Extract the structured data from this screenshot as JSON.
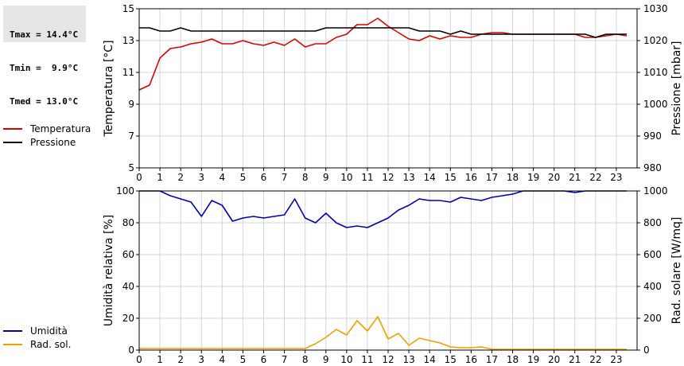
{
  "stats": {
    "lines": [
      "Tmax = 14.4°C",
      "Tmin =  9.9°C",
      "Tmed = 13.0°C"
    ]
  },
  "colors": {
    "temperature": "#dd0000",
    "pressure": "#000000",
    "humidity": "#0000b4",
    "radiation": "#f0a000",
    "grid": "#d4d4d4"
  },
  "chart_data": [
    {
      "type": "line",
      "xlabel": "",
      "ylabel": "Temperatura [°C]",
      "y2label": "Pressione [mbar]",
      "xlim": [
        0,
        24
      ],
      "xticks": [
        0,
        1,
        2,
        3,
        4,
        5,
        6,
        7,
        8,
        9,
        10,
        11,
        12,
        13,
        14,
        15,
        16,
        17,
        18,
        19,
        20,
        21,
        22,
        23
      ],
      "ylim": [
        5,
        15
      ],
      "yticks": [
        5,
        7,
        9,
        11,
        13,
        15
      ],
      "y2lim": [
        980,
        1030
      ],
      "y2ticks": [
        980,
        990,
        1000,
        1010,
        1020,
        1030
      ],
      "grid": true,
      "legend_position": "left",
      "series": [
        {
          "name": "Temperatura",
          "axis": "left",
          "color": "#dd0000",
          "x": [
            0,
            0.5,
            1,
            1.5,
            2,
            2.5,
            3,
            3.5,
            4,
            4.5,
            5,
            5.5,
            6,
            6.5,
            7,
            7.5,
            8,
            8.5,
            9,
            9.5,
            10,
            10.5,
            11,
            11.5,
            12,
            12.5,
            13,
            13.5,
            14,
            14.5,
            15,
            15.5,
            16,
            16.5,
            17,
            17.5,
            18,
            18.5,
            19,
            19.5,
            20,
            20.5,
            21,
            21.5,
            22,
            22.5,
            23,
            23.5
          ],
          "values": [
            9.9,
            10.2,
            11.9,
            12.5,
            12.6,
            12.8,
            12.9,
            13.1,
            12.8,
            12.8,
            13.0,
            12.8,
            12.7,
            12.9,
            12.7,
            13.1,
            12.6,
            12.8,
            12.8,
            13.2,
            13.4,
            14.0,
            14.0,
            14.4,
            13.9,
            13.5,
            13.1,
            13.0,
            13.3,
            13.1,
            13.3,
            13.2,
            13.2,
            13.4,
            13.5,
            13.5,
            13.4,
            13.4,
            13.4,
            13.4,
            13.4,
            13.4,
            13.4,
            13.2,
            13.2,
            13.3,
            13.4,
            13.3
          ]
        },
        {
          "name": "Pressione",
          "axis": "right",
          "color": "#000000",
          "x": [
            0,
            0.5,
            1,
            1.5,
            2,
            2.5,
            3,
            3.5,
            4,
            4.5,
            5,
            5.5,
            6,
            6.5,
            7,
            7.5,
            8,
            8.5,
            9,
            9.5,
            10,
            10.5,
            11,
            11.5,
            12,
            12.5,
            13,
            13.5,
            14,
            14.5,
            15,
            15.5,
            16,
            16.5,
            17,
            17.5,
            18,
            18.5,
            19,
            19.5,
            20,
            20.5,
            21,
            21.5,
            22,
            22.5,
            23,
            23.5
          ],
          "values": [
            1024,
            1024,
            1023,
            1023,
            1024,
            1023,
            1023,
            1023,
            1023,
            1023,
            1023,
            1023,
            1023,
            1023,
            1023,
            1023,
            1023,
            1023,
            1024,
            1024,
            1024,
            1024,
            1024,
            1024,
            1024,
            1024,
            1024,
            1023,
            1023,
            1023,
            1022,
            1023,
            1022,
            1022,
            1022,
            1022,
            1022,
            1022,
            1022,
            1022,
            1022,
            1022,
            1022,
            1022,
            1021,
            1022,
            1022,
            1022
          ]
        }
      ]
    },
    {
      "type": "line",
      "xlabel": "",
      "ylabel": "Umidità relativa [%]",
      "y2label": "Rad. solare [W/mq]",
      "xlim": [
        0,
        24
      ],
      "xticks": [
        0,
        1,
        2,
        3,
        4,
        5,
        6,
        7,
        8,
        9,
        10,
        11,
        12,
        13,
        14,
        15,
        16,
        17,
        18,
        19,
        20,
        21,
        22,
        23
      ],
      "ylim": [
        0,
        100
      ],
      "yticks": [
        0,
        20,
        40,
        60,
        80,
        100
      ],
      "y2lim": [
        0,
        1000
      ],
      "y2ticks": [
        0,
        200,
        400,
        600,
        800,
        1000
      ],
      "grid": true,
      "legend_position": "left",
      "series": [
        {
          "name": "Umidità",
          "axis": "left",
          "color": "#0000b4",
          "x": [
            0,
            0.5,
            1,
            1.5,
            2,
            2.5,
            3,
            3.5,
            4,
            4.5,
            5,
            5.5,
            6,
            6.5,
            7,
            7.5,
            8,
            8.5,
            9,
            9.5,
            10,
            10.5,
            11,
            11.5,
            12,
            12.5,
            13,
            13.5,
            14,
            14.5,
            15,
            15.5,
            16,
            16.5,
            17,
            17.5,
            18,
            18.5,
            19,
            19.5,
            20,
            20.5,
            21,
            21.5,
            22,
            22.5,
            23,
            23.5
          ],
          "values": [
            100,
            100,
            100,
            97,
            95,
            93,
            84,
            94,
            91,
            81,
            83,
            84,
            83,
            84,
            85,
            95,
            83,
            80,
            86,
            80,
            77,
            78,
            77,
            80,
            83,
            88,
            91,
            95,
            94,
            94,
            93,
            96,
            95,
            94,
            96,
            97,
            98,
            100,
            100,
            100,
            100,
            100,
            99,
            100,
            100,
            100,
            100,
            100
          ]
        },
        {
          "name": "Rad. sol.",
          "axis": "right",
          "color": "#f0a000",
          "x": [
            0,
            0.5,
            1,
            1.5,
            2,
            2.5,
            3,
            3.5,
            4,
            4.5,
            5,
            5.5,
            6,
            6.5,
            7,
            7.5,
            8,
            8.5,
            9,
            9.5,
            10,
            10.5,
            11,
            11.5,
            12,
            12.5,
            13,
            13.5,
            14,
            14.5,
            15,
            15.5,
            16,
            16.5,
            17,
            17.5,
            18,
            18.5,
            19,
            19.5,
            20,
            20.5,
            21,
            21.5,
            22,
            22.5,
            23,
            23.5
          ],
          "values": [
            10,
            10,
            10,
            10,
            10,
            10,
            10,
            10,
            10,
            10,
            10,
            10,
            10,
            10,
            10,
            10,
            10,
            40,
            80,
            130,
            95,
            185,
            120,
            210,
            70,
            105,
            30,
            75,
            60,
            45,
            20,
            15,
            15,
            20,
            5,
            5,
            5,
            5,
            5,
            5,
            5,
            5,
            5,
            5,
            5,
            5,
            5,
            5
          ]
        }
      ]
    }
  ]
}
